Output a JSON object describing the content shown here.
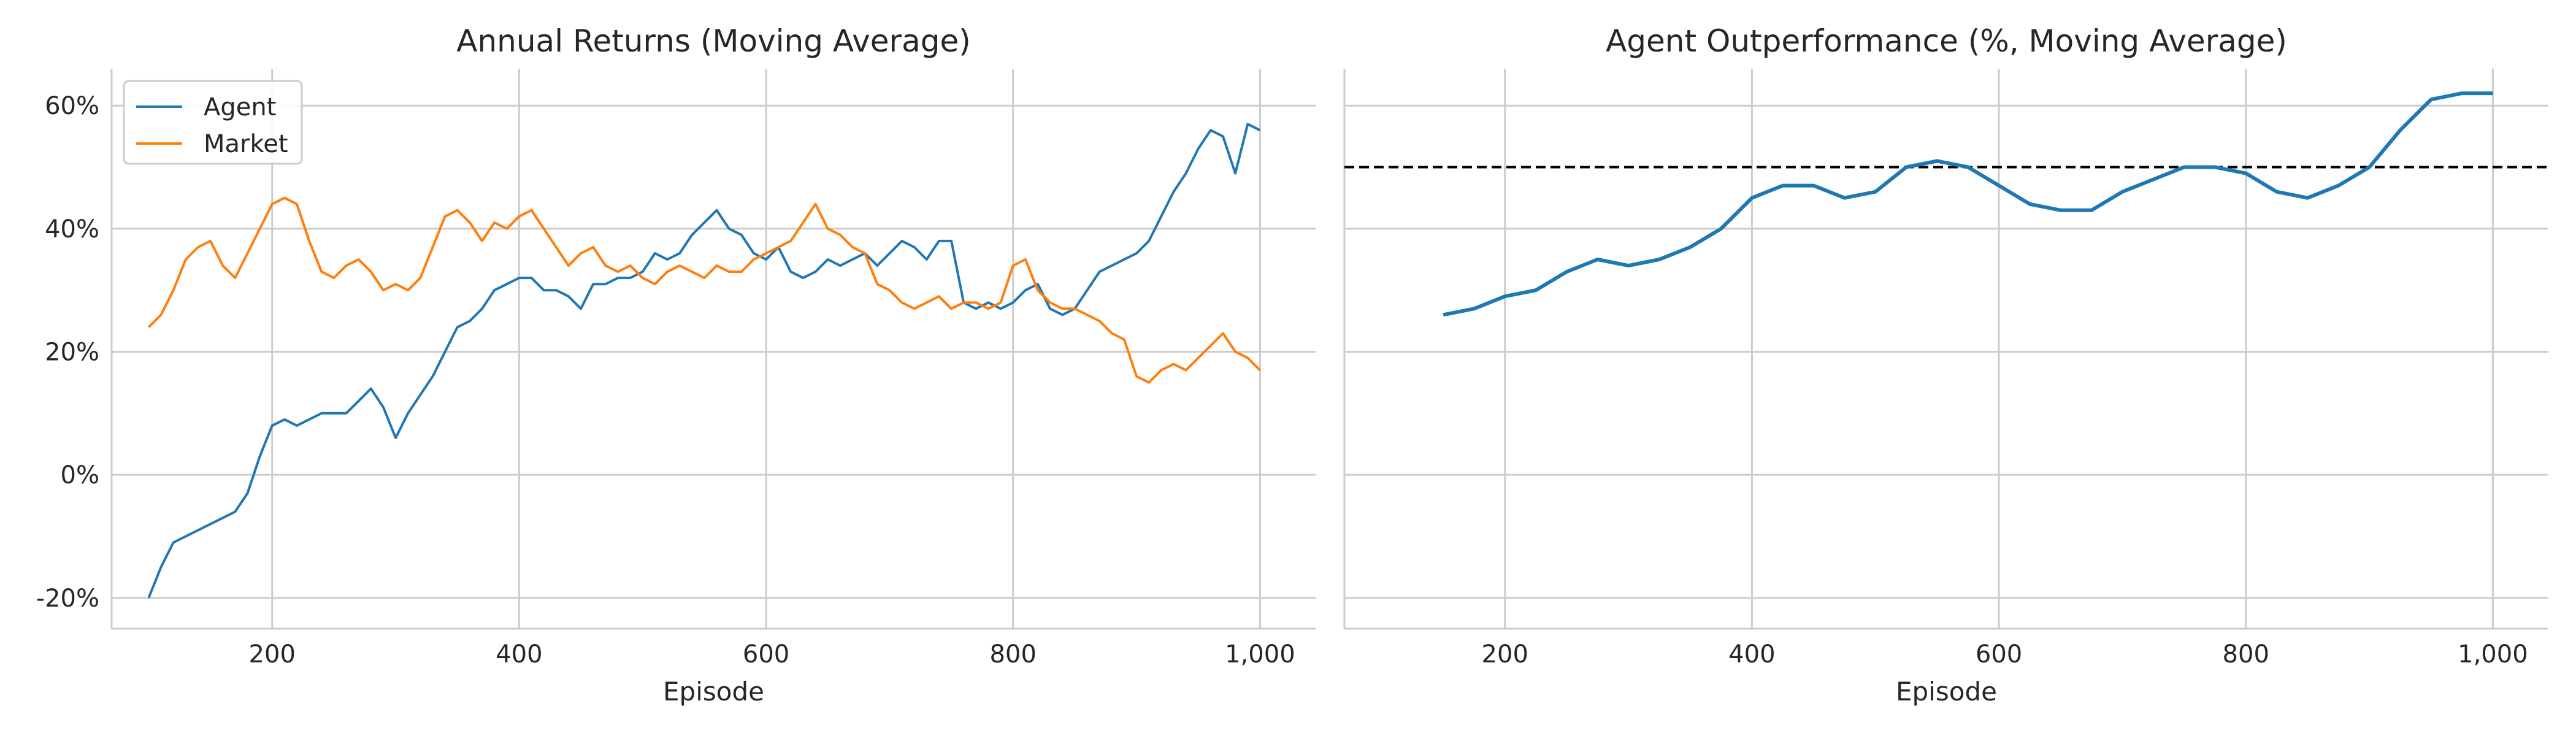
{
  "chart_data": [
    {
      "type": "line",
      "title": "Annual Returns (Moving Average)",
      "xlabel": "Episode",
      "ylabel": "",
      "xlim": [
        70,
        1045
      ],
      "ylim": [
        -25,
        66
      ],
      "x_ticks": [
        200,
        400,
        600,
        800,
        1000
      ],
      "x_tick_labels": [
        "200",
        "400",
        "600",
        "800",
        "1,000"
      ],
      "y_ticks": [
        -20,
        0,
        20,
        40,
        60
      ],
      "y_tick_labels": [
        "-20%",
        "0%",
        "20%",
        "40%",
        "60%"
      ],
      "grid": true,
      "legend_position": "top-left",
      "series": [
        {
          "name": "Agent",
          "color": "#1f77b4",
          "x": [
            100,
            110,
            120,
            130,
            140,
            150,
            160,
            170,
            180,
            190,
            200,
            210,
            220,
            230,
            240,
            250,
            260,
            270,
            280,
            290,
            300,
            310,
            320,
            330,
            340,
            350,
            360,
            370,
            380,
            390,
            400,
            410,
            420,
            430,
            440,
            450,
            460,
            470,
            480,
            490,
            500,
            510,
            520,
            530,
            540,
            550,
            560,
            570,
            580,
            590,
            600,
            610,
            620,
            630,
            640,
            650,
            660,
            670,
            680,
            690,
            700,
            710,
            720,
            730,
            740,
            750,
            760,
            770,
            780,
            790,
            800,
            810,
            820,
            830,
            840,
            850,
            860,
            870,
            880,
            890,
            900,
            910,
            920,
            930,
            940,
            950,
            960,
            970,
            980,
            990,
            1000
          ],
          "values": [
            -20,
            -15,
            -11,
            -10,
            -9,
            -8,
            -7,
            -6,
            -3,
            3,
            8,
            9,
            8,
            9,
            10,
            10,
            10,
            12,
            14,
            11,
            6,
            10,
            13,
            16,
            20,
            24,
            25,
            27,
            30,
            31,
            32,
            32,
            30,
            30,
            29,
            27,
            31,
            31,
            32,
            32,
            33,
            36,
            35,
            36,
            39,
            41,
            43,
            40,
            39,
            36,
            35,
            37,
            33,
            32,
            33,
            35,
            34,
            35,
            36,
            34,
            36,
            38,
            37,
            35,
            38,
            38,
            28,
            27,
            28,
            27,
            28,
            30,
            31,
            27,
            26,
            27,
            30,
            33,
            34,
            35,
            36,
            38,
            42,
            46,
            49,
            53,
            56,
            55,
            49,
            57,
            56
          ]
        },
        {
          "name": "Market",
          "color": "#ff7f0e",
          "x": [
            100,
            110,
            120,
            130,
            140,
            150,
            160,
            170,
            180,
            190,
            200,
            210,
            220,
            230,
            240,
            250,
            260,
            270,
            280,
            290,
            300,
            310,
            320,
            330,
            340,
            350,
            360,
            370,
            380,
            390,
            400,
            410,
            420,
            430,
            440,
            450,
            460,
            470,
            480,
            490,
            500,
            510,
            520,
            530,
            540,
            550,
            560,
            570,
            580,
            590,
            600,
            610,
            620,
            630,
            640,
            650,
            660,
            670,
            680,
            690,
            700,
            710,
            720,
            730,
            740,
            750,
            760,
            770,
            780,
            790,
            800,
            810,
            820,
            830,
            840,
            850,
            860,
            870,
            880,
            890,
            900,
            910,
            920,
            930,
            940,
            950,
            960,
            970,
            980,
            990,
            1000
          ],
          "values": [
            24,
            26,
            30,
            35,
            37,
            38,
            34,
            32,
            36,
            40,
            44,
            45,
            44,
            38,
            33,
            32,
            34,
            35,
            33,
            30,
            31,
            30,
            32,
            37,
            42,
            43,
            41,
            38,
            41,
            40,
            42,
            43,
            40,
            37,
            34,
            36,
            37,
            34,
            33,
            34,
            32,
            31,
            33,
            34,
            33,
            32,
            34,
            33,
            33,
            35,
            36,
            37,
            38,
            41,
            44,
            40,
            39,
            37,
            36,
            31,
            30,
            28,
            27,
            28,
            29,
            27,
            28,
            28,
            27,
            28,
            34,
            35,
            30,
            28,
            27,
            27,
            26,
            25,
            23,
            22,
            16,
            15,
            17,
            18,
            17,
            19,
            21,
            23,
            20,
            19,
            17
          ]
        }
      ]
    },
    {
      "type": "line",
      "title": "Agent Outperformance (%, Moving Average)",
      "xlabel": "Episode",
      "ylabel": "",
      "xlim": [
        70,
        1045
      ],
      "ylim": [
        -25,
        66
      ],
      "x_ticks": [
        200,
        400,
        600,
        800,
        1000
      ],
      "x_tick_labels": [
        "200",
        "400",
        "600",
        "800",
        "1,000"
      ],
      "y_ticks": [
        -20,
        0,
        20,
        40,
        60
      ],
      "grid": true,
      "reference_line": {
        "y": 50,
        "style": "dashed",
        "color": "#000000"
      },
      "series": [
        {
          "color": "#1f77b4",
          "x": [
            150,
            175,
            200,
            225,
            250,
            275,
            300,
            325,
            350,
            375,
            400,
            425,
            450,
            475,
            500,
            525,
            550,
            575,
            600,
            625,
            650,
            675,
            700,
            725,
            750,
            775,
            800,
            825,
            850,
            875,
            900,
            925,
            950,
            975,
            1000
          ],
          "values": [
            26,
            27,
            29,
            30,
            33,
            35,
            34,
            35,
            37,
            40,
            45,
            47,
            47,
            45,
            46,
            50,
            51,
            50,
            47,
            44,
            43,
            43,
            46,
            48,
            50,
            50,
            49,
            46,
            45,
            47,
            50,
            56,
            61,
            62,
            62
          ]
        }
      ]
    }
  ]
}
